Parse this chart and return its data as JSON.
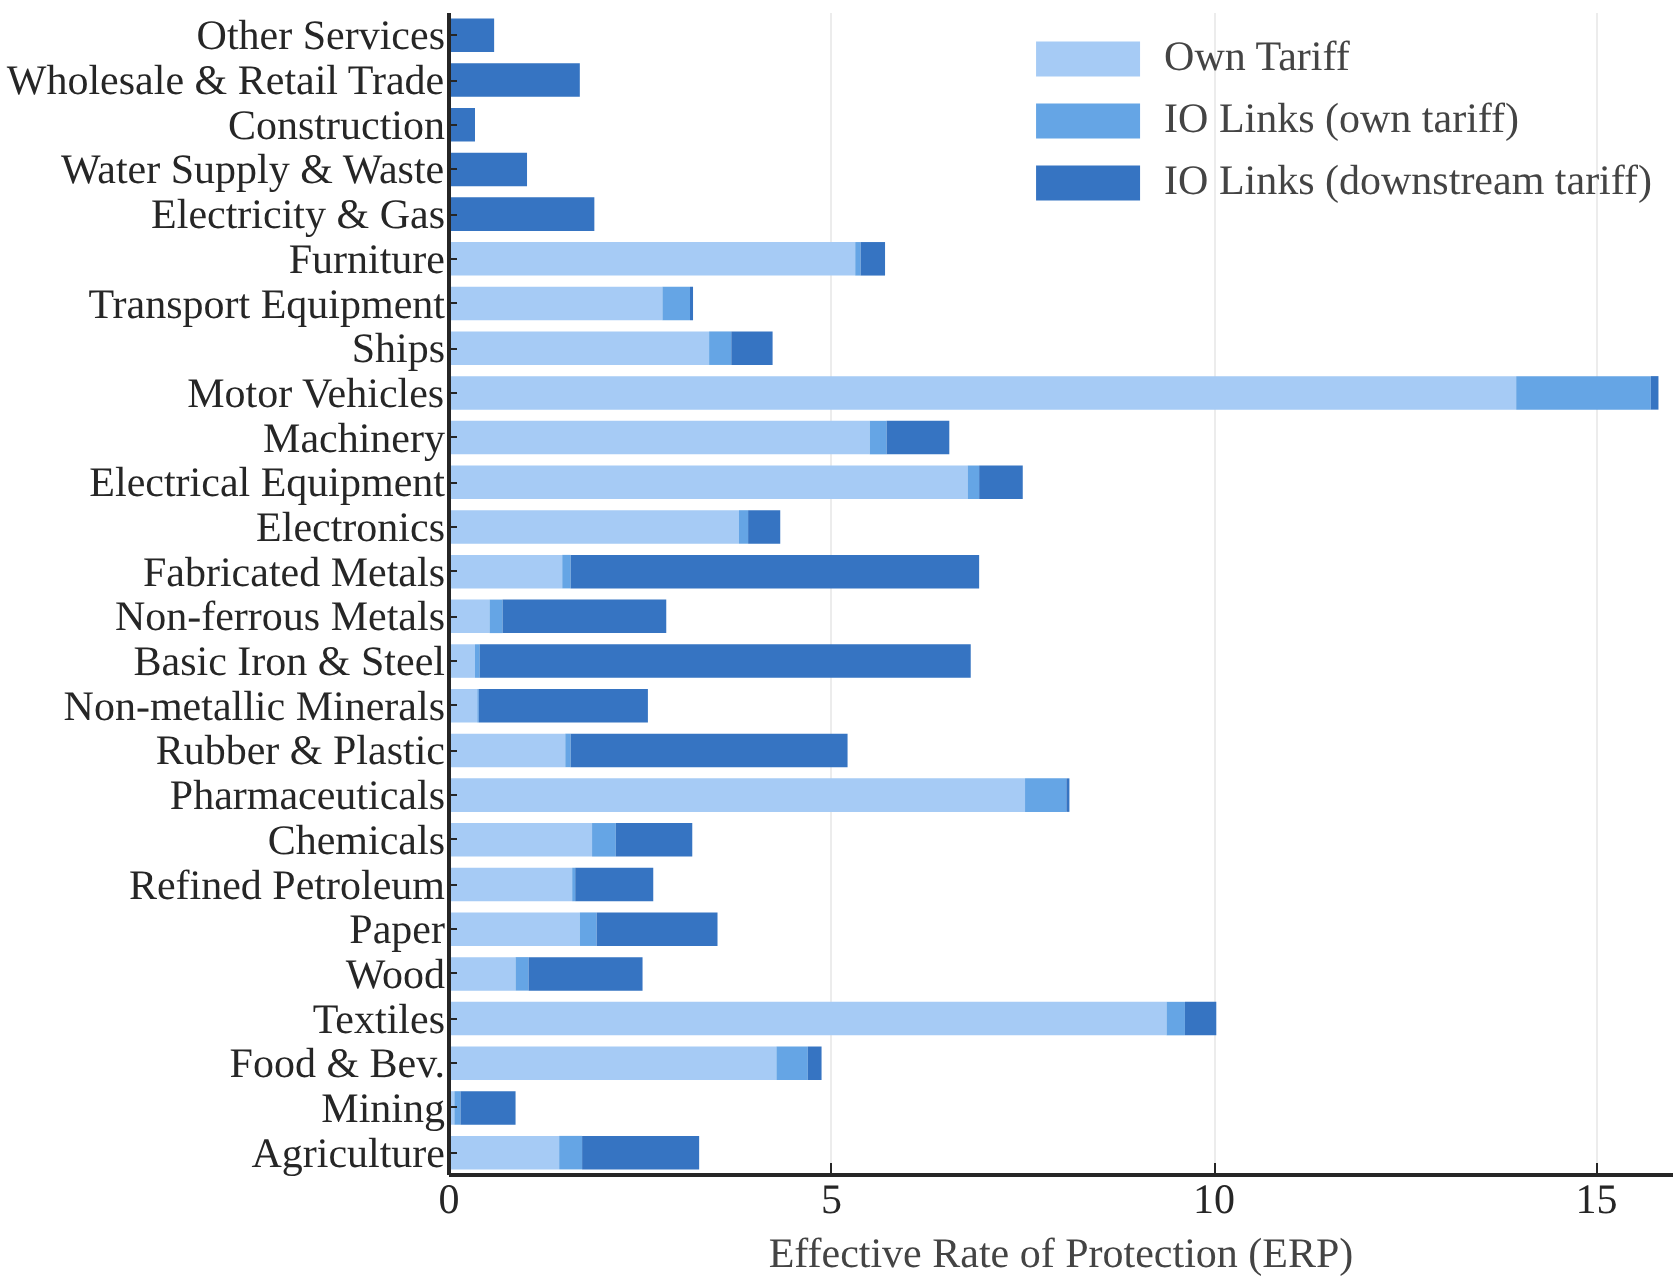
{
  "chart_data": {
    "type": "bar",
    "orientation": "horizontal",
    "stacked": true,
    "xlabel": "Effective Rate of Protection (ERP)",
    "categories": [
      "Other Services",
      "Wholesale & Retail Trade",
      "Construction",
      "Water Supply & Waste",
      "Electricity & Gas",
      "Furniture",
      "Transport Equipment",
      "Ships",
      "Motor Vehicles",
      "Machinery",
      "Electrical Equipment",
      "Electronics",
      "Fabricated Metals",
      "Non-ferrous Metals",
      "Basic Iron & Steel",
      "Non-metallic Minerals",
      "Rubber & Plastic",
      "Pharmaceuticals",
      "Chemicals",
      "Refined Petroleum",
      "Paper",
      "Wood",
      "Textiles",
      "Food & Bev.",
      "Mining",
      "Agriculture"
    ],
    "series": [
      {
        "name": "Own Tariff",
        "color": "#a6cbf5",
        "values": [
          0,
          0,
          0,
          0,
          0,
          5.31,
          2.79,
          3.4,
          13.95,
          5.5,
          6.78,
          3.79,
          1.48,
          0.53,
          0.34,
          0.37,
          1.52,
          7.53,
          1.87,
          1.61,
          1.71,
          0.87,
          9.38,
          4.28,
          0.07,
          1.44
        ]
      },
      {
        "name": "IO Links (own tariff)",
        "color": "#65a5e5",
        "values": [
          0,
          0,
          0,
          0,
          0,
          0.07,
          0.36,
          0.29,
          1.76,
          0.22,
          0.15,
          0.12,
          0.11,
          0.17,
          0.06,
          0.02,
          0.07,
          0.54,
          0.31,
          0.04,
          0.22,
          0.17,
          0.24,
          0.41,
          0.08,
          0.3
        ]
      },
      {
        "name": "IO Links (downstream tariff)",
        "color": "#3674c2",
        "values": [
          0.59,
          1.71,
          0.34,
          1.02,
          1.9,
          0.32,
          0.04,
          0.54,
          0.1,
          0.82,
          0.57,
          0.42,
          5.34,
          2.14,
          6.42,
          2.21,
          3.62,
          0.04,
          1.0,
          1.02,
          1.58,
          1.49,
          0.41,
          0.18,
          0.72,
          1.53
        ]
      }
    ],
    "xlim": [
      0,
      16
    ],
    "xticks": [
      0,
      5,
      10,
      15
    ],
    "grid": "x",
    "legend": "top right"
  }
}
